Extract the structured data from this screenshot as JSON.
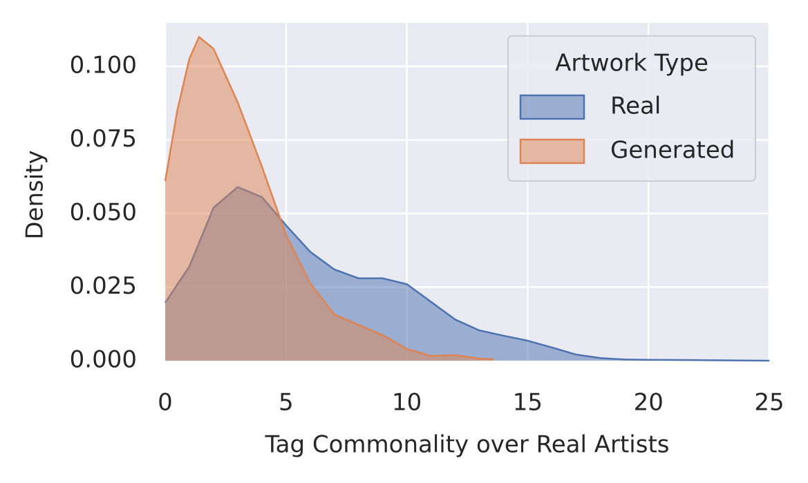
{
  "chart_data": {
    "type": "kde",
    "xlabel": "Tag Commonality over Real Artists",
    "ylabel": "Density",
    "xlim": [
      0,
      25
    ],
    "xticks": [
      0,
      5,
      10,
      15,
      20,
      25
    ],
    "ylim": [
      0,
      0.1148
    ],
    "yticks": [
      {
        "value": 0,
        "label": "0.000"
      },
      {
        "value": 0.025,
        "label": "0.025"
      },
      {
        "value": 0.05,
        "label": "0.050"
      },
      {
        "value": 0.075,
        "label": "0.075"
      },
      {
        "value": 0.1,
        "label": "0.100"
      }
    ],
    "grid": true,
    "legend_title": "Artwork Type",
    "legend_position": "upper right",
    "series": [
      {
        "name": "Real",
        "color": "#4c72b0",
        "x": [
          0,
          1,
          2,
          3,
          4,
          5,
          6,
          7,
          8,
          9,
          10,
          11,
          12,
          13,
          14,
          15,
          16,
          17,
          18,
          19,
          20,
          22,
          25
        ],
        "values": [
          0.0197,
          0.032,
          0.052,
          0.059,
          0.0556,
          0.046,
          0.037,
          0.031,
          0.028,
          0.028,
          0.026,
          0.02,
          0.014,
          0.0103,
          0.0085,
          0.0068,
          0.0045,
          0.0021,
          0.0009,
          0.0004,
          0.0003,
          0.0002,
          0.0
        ]
      },
      {
        "name": "Generated",
        "color": "#dd8452",
        "x": [
          0,
          0.5,
          1,
          1.4,
          2,
          3,
          4,
          5,
          6,
          7,
          8,
          9,
          10,
          11,
          12,
          13,
          13.6
        ],
        "values": [
          0.061,
          0.085,
          0.1026,
          0.11,
          0.106,
          0.0878,
          0.066,
          0.0427,
          0.0263,
          0.0157,
          0.0122,
          0.0087,
          0.004,
          0.0016,
          0.0019,
          0.0007,
          0.0005
        ]
      }
    ]
  }
}
